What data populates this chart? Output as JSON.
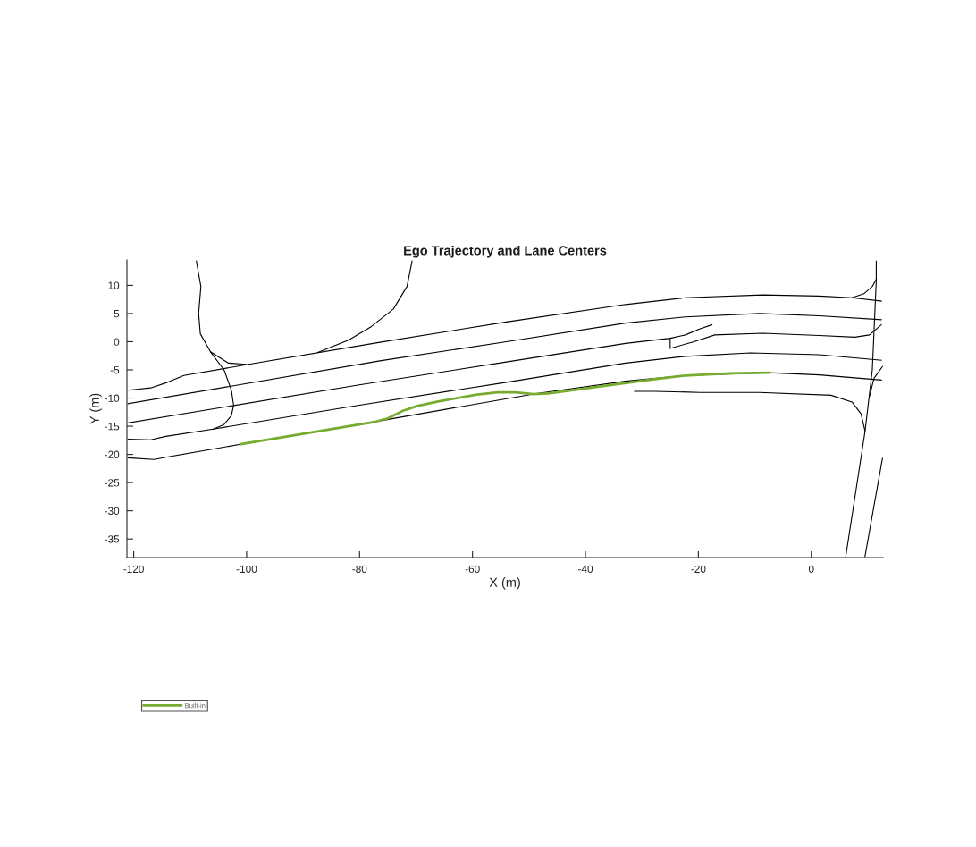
{
  "chart_data": {
    "type": "line",
    "title": "Ego Trajectory and Lane Centers",
    "xlabel": "X (m)",
    "ylabel": "Y (m)",
    "xlim": [
      -121.2,
      12.7
    ],
    "ylim": [
      -38.3,
      14.5
    ],
    "xticks": [
      -120,
      -100,
      -80,
      -60,
      -40,
      -20,
      0
    ],
    "yticks": [
      -35,
      -30,
      -25,
      -20,
      -15,
      -10,
      -5,
      0,
      5,
      10
    ],
    "legend": "bottom left",
    "line_style": "solid",
    "series": [
      {
        "color": "#000000",
        "x": [
          -121.0,
          -117.0,
          -114.0,
          -111.1,
          -100.1,
          -76.4,
          -54.0,
          -32.9,
          -22.3,
          -8.6,
          1.4,
          7.2,
          12.4
        ],
        "values": [
          -8.6,
          -8.2,
          -7.2,
          -6.0,
          -4.1,
          -0.1,
          3.5,
          6.6,
          7.8,
          8.3,
          8.1,
          7.8,
          7.2
        ]
      },
      {
        "color": "#000000",
        "x": [
          -121.0,
          -76.4,
          -54.0,
          -32.9,
          -22.3,
          -9.2,
          1.4,
          12.4
        ],
        "values": [
          -11.0,
          -3.4,
          0.0,
          3.3,
          4.4,
          5.0,
          4.6,
          3.9
        ]
      },
      {
        "color": "#000000",
        "x": [
          -121.0,
          -80.3,
          -54.0,
          -32.9,
          -25.0,
          -22.3,
          -19.7,
          -17.6
        ],
        "values": [
          -14.4,
          -7.7,
          -3.6,
          -0.3,
          0.6,
          1.2,
          2.3,
          3.0
        ]
      },
      {
        "color": "#000000",
        "x": [
          -25.0,
          -25.0,
          -20.8,
          -17.1,
          -8.6,
          1.4,
          7.7,
          10.3,
          12.4
        ],
        "values": [
          0.6,
          -1.2,
          0.0,
          1.2,
          1.5,
          1.1,
          0.8,
          1.2,
          3.0
        ]
      },
      {
        "color": "#000000",
        "x": [
          -121.0,
          -117.0,
          -114.3,
          -105.9,
          -80.3,
          -54.0,
          -32.9,
          -22.3,
          -10.8,
          1.4,
          12.4
        ],
        "values": [
          -17.3,
          -17.4,
          -16.8,
          -15.5,
          -11.3,
          -7.2,
          -3.8,
          -2.6,
          -2.0,
          -2.3,
          -3.3
        ]
      },
      {
        "color": "#000000",
        "x": [
          -121.0,
          -116.4,
          -114.3,
          -101.1,
          -75.6,
          -48.7,
          -32.9,
          -22.3,
          -7.6,
          1.4,
          12.4
        ],
        "values": [
          -20.6,
          -20.9,
          -20.5,
          -18.2,
          -13.9,
          -9.2,
          -7.0,
          -6.0,
          -5.5,
          -5.9,
          -6.8
        ]
      },
      {
        "color": "#000000",
        "x": [
          -31.3,
          -27.6,
          -19.7,
          -9.2,
          3.5,
          7.2,
          8.8,
          9.5
        ],
        "values": [
          -8.8,
          -8.8,
          -9.0,
          -9.0,
          -9.5,
          -10.7,
          -12.8,
          -15.8
        ]
      },
      {
        "color": "#000000",
        "x": [
          6.1,
          9.5,
          10.8,
          11.5,
          11.5
        ],
        "values": [
          -38.1,
          -16.0,
          -5.0,
          10.8,
          14.3
        ]
      },
      {
        "color": "#000000",
        "x": [
          9.5,
          12.6
        ],
        "values": [
          -38.1,
          -20.7
        ]
      },
      {
        "color": "#000000",
        "x": [
          7.2,
          9.3,
          10.8,
          11.5
        ],
        "values": [
          7.8,
          8.5,
          9.8,
          11.1
        ]
      },
      {
        "color": "#000000",
        "x": [
          10.3,
          11.1,
          12.6
        ],
        "values": [
          -9.7,
          -6.5,
          -4.4
        ]
      },
      {
        "color": "#000000",
        "x": [
          -108.9,
          -108.1,
          -108.5,
          -108.2,
          -106.4,
          -104.0,
          -102.7,
          -102.3,
          -102.7,
          -104.0,
          -105.9
        ],
        "values": [
          14.3,
          9.8,
          5.0,
          1.4,
          -1.8,
          -5.0,
          -8.6,
          -11.3,
          -13.1,
          -14.7,
          -15.5
        ]
      },
      {
        "color": "#000000",
        "x": [
          -106.4,
          -103.2,
          -100.1
        ],
        "values": [
          -1.8,
          -3.8,
          -4.0
        ]
      },
      {
        "color": "#000000",
        "x": [
          -87.4,
          -81.9,
          -77.9,
          -74.0,
          -71.6,
          -70.7
        ],
        "values": [
          -1.9,
          0.3,
          2.7,
          5.8,
          9.8,
          14.3
        ]
      },
      {
        "name": "Built-in",
        "color": "#77ac30",
        "x": [
          -101.1,
          -77.2,
          -75.0,
          -72.4,
          -69.8,
          -66.1,
          -59.2,
          -55.5,
          -52.4,
          -49.2,
          -46.6,
          -28.1,
          -22.3,
          -14.4,
          -7.6
        ],
        "values": [
          -18.2,
          -14.2,
          -13.6,
          -12.3,
          -11.4,
          -10.6,
          -9.4,
          -9.0,
          -9.0,
          -9.3,
          -9.2,
          -6.7,
          -6.0,
          -5.6,
          -5.5
        ]
      }
    ]
  }
}
